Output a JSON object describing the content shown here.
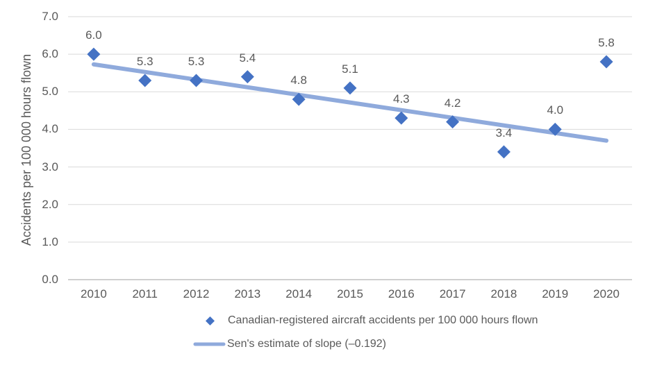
{
  "chart_data": {
    "type": "scatter",
    "title": "",
    "xlabel": "",
    "ylabel": "Accidents per 100 000 hours flown",
    "categories": [
      "2010",
      "2011",
      "2012",
      "2013",
      "2014",
      "2015",
      "2016",
      "2017",
      "2018",
      "2019",
      "2020"
    ],
    "series": [
      {
        "name": "Canadian-registered aircraft accidents per 100 000 hours flown",
        "type": "scatter",
        "marker": "diamond",
        "color": "#4472C4",
        "values": [
          6.0,
          5.3,
          5.3,
          5.4,
          4.8,
          5.1,
          4.3,
          4.2,
          3.4,
          4.0,
          5.8
        ],
        "data_labels": [
          "6.0",
          "5.3",
          "5.3",
          "5.4",
          "4.8",
          "5.1",
          "4.3",
          "4.2",
          "3.4",
          "4.0",
          "5.8"
        ]
      },
      {
        "name": "Sen's estimate of slope (–0.192)",
        "type": "trendline",
        "color": "#8FAADC",
        "slope": -0.192,
        "start_value": 5.73,
        "end_value": 3.7
      }
    ],
    "ylim": [
      0,
      7
    ],
    "ytick_step": 1,
    "ytick_labels": [
      "0.0",
      "1.0",
      "2.0",
      "3.0",
      "4.0",
      "5.0",
      "6.0",
      "7.0"
    ],
    "grid": true,
    "legend_position": "bottom"
  },
  "colors": {
    "marker": "#4472C4",
    "trend_line": "#8FAADC",
    "gridline": "#D9D9D9",
    "axis_line": "#BFBFBF",
    "text": "#595959",
    "background": "#FFFFFF"
  }
}
